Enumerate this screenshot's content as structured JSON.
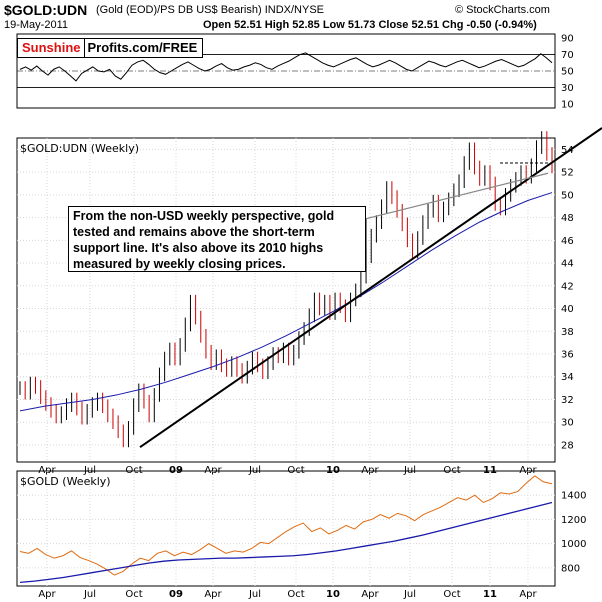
{
  "header": {
    "symbol": "$GOLD:UDN",
    "description": "(Gold (EOD)/PS DB US$ Bearish) INDX/NYSE",
    "date": "19-May-2011",
    "ohlc_text": "Open 52.51  High 52.85  Low 51.73  Close 52.51  Chg -0.50 (-0.94%)",
    "brand": "© StockCharts.com"
  },
  "badge": {
    "left": "Sunshine",
    "right": "Profits.com/FREE"
  },
  "annotation": "From the non-USD weekly perspective, gold tested and remains above the short-term support line. It's also above its 2010 highs measured by weekly closing prices.",
  "colors": {
    "price_up": "#000000",
    "price_down": "#cc0000",
    "ma": "#1a1aaa",
    "gold": "#e06a10",
    "rsi_fill": "#5a8a5a"
  },
  "chart_data": [
    {
      "type": "line",
      "name": "rsi",
      "yticks": [
        10,
        30,
        50,
        70,
        90
      ],
      "ylim": [
        5,
        95
      ],
      "y": [
        52,
        55,
        51,
        56,
        50,
        45,
        52,
        55,
        50,
        44,
        38,
        47,
        51,
        55,
        50,
        49,
        52,
        44,
        40,
        48,
        57,
        61,
        63,
        58,
        52,
        48,
        46,
        50,
        54,
        58,
        61,
        57,
        53,
        50,
        52,
        56,
        59,
        54,
        51,
        52,
        55,
        57,
        60,
        58,
        54,
        52,
        56,
        59,
        62,
        66,
        70,
        72,
        68,
        64,
        60,
        57,
        55,
        58,
        61,
        64,
        66,
        62,
        58,
        55,
        57,
        60,
        63,
        60,
        56,
        52,
        50,
        54,
        58,
        62,
        60,
        57,
        55,
        58,
        61,
        63,
        60,
        57,
        54,
        56,
        59,
        62,
        64,
        61,
        58,
        55,
        57,
        61,
        65,
        71,
        66,
        60
      ]
    },
    {
      "type": "candlestick",
      "title": "$GOLD:UDN (Weekly)",
      "yticks": [
        28,
        30,
        32,
        34,
        36,
        38,
        40,
        42,
        44,
        46,
        48,
        50,
        52,
        54
      ],
      "ylim": [
        26.5,
        55
      ],
      "xticks": [
        "Apr",
        "Jul",
        "Oct",
        "09",
        "Apr",
        "Jul",
        "Oct",
        "10",
        "Apr",
        "Jul",
        "Oct",
        "11",
        "Apr"
      ],
      "close": [
        33.0,
        32.6,
        33.4,
        33.1,
        32.2,
        31.6,
        31.0,
        30.5,
        30.8,
        31.5,
        32.0,
        31.2,
        30.4,
        31.0,
        31.6,
        32.0,
        31.4,
        30.6,
        30.0,
        29.2,
        28.4,
        29.5,
        31.5,
        32.8,
        31.8,
        30.6,
        32.4,
        34.2,
        35.6,
        36.4,
        35.6,
        36.8,
        38.6,
        40.6,
        39.2,
        37.6,
        36.2,
        35.2,
        35.8,
        35.0,
        34.6,
        35.2,
        34.6,
        34.0,
        34.8,
        35.6,
        35.0,
        34.4,
        35.2,
        36.0,
        35.8,
        36.4,
        35.6,
        36.2,
        37.4,
        38.2,
        39.4,
        40.8,
        40.0,
        40.6,
        39.6,
        40.8,
        40.2,
        39.4,
        40.8,
        41.6,
        42.8,
        44.6,
        46.4,
        47.6,
        49.0,
        50.6,
        49.8,
        48.6,
        47.4,
        46.0,
        45.0,
        46.2,
        47.6,
        48.6,
        49.4,
        48.2,
        48.8,
        49.6,
        50.4,
        51.2,
        52.8,
        54.0,
        52.4,
        51.4,
        52.0,
        51.0,
        49.2,
        48.8,
        50.0,
        50.8,
        51.4,
        52.0,
        51.6,
        52.6,
        54.2,
        55.0,
        53.6,
        52.5
      ],
      "ma_name": "MA",
      "ma_close": [
        31.0,
        31.4,
        31.7,
        32.0,
        32.4,
        32.9,
        33.5,
        34.2,
        34.9,
        35.7,
        36.6,
        37.6,
        38.7,
        39.8,
        41.0,
        42.3,
        43.7,
        45.1,
        46.4,
        47.6,
        48.6,
        49.5,
        50.2
      ],
      "support_line": {
        "start": [
          "Oct 2008",
          27.8
        ],
        "end": [
          "May 2011",
          55.0
        ]
      },
      "resistance_line": {
        "start": [
          "Apr 2010",
          47.9
        ],
        "end": [
          "May 2011",
          51.9
        ]
      }
    },
    {
      "type": "line",
      "title": "$GOLD (Weekly)",
      "yticks": [
        800,
        1000,
        1200,
        1400
      ],
      "ylim": [
        650,
        1600
      ],
      "xticks": [
        "Apr",
        "Jul",
        "Oct",
        "09",
        "Apr",
        "Jul",
        "Oct",
        "10",
        "Apr",
        "Jul",
        "Oct",
        "11",
        "Apr"
      ],
      "series": [
        {
          "name": "gold",
          "values": [
            935,
            920,
            960,
            910,
            880,
            900,
            940,
            885,
            860,
            830,
            790,
            740,
            770,
            830,
            880,
            860,
            920,
            940,
            900,
            930,
            910,
            950,
            1000,
            960,
            920,
            940,
            930,
            960,
            1010,
            1000,
            1050,
            1100,
            1140,
            1170,
            1100,
            1130,
            1080,
            1110,
            1150,
            1120,
            1180,
            1200,
            1240,
            1210,
            1250,
            1230,
            1190,
            1240,
            1270,
            1300,
            1340,
            1380,
            1360,
            1400,
            1340,
            1370,
            1420,
            1410,
            1430,
            1500,
            1560,
            1510,
            1495
          ]
        },
        {
          "name": "ma",
          "values": [
            680,
            690,
            705,
            720,
            740,
            760,
            780,
            800,
            820,
            840,
            855,
            865,
            870,
            875,
            880,
            880,
            885,
            890,
            895,
            900,
            910,
            925,
            940,
            960,
            980,
            1000,
            1020,
            1045,
            1070,
            1100,
            1130,
            1160,
            1190,
            1220,
            1250,
            1280,
            1310,
            1340
          ]
        }
      ]
    }
  ]
}
